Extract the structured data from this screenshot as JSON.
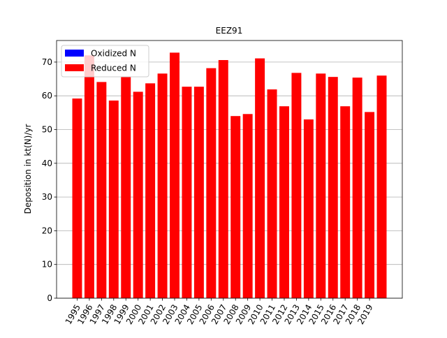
{
  "chart_data": {
    "type": "bar",
    "title": "EEZ91",
    "ylabel": "Deposition in kt(N)/yr",
    "categories": [
      "1995",
      "1996",
      "1997",
      "1998",
      "1999",
      "2000",
      "2001",
      "2002",
      "2003",
      "2004",
      "2005",
      "2006",
      "2007",
      "2008",
      "2009",
      "2010",
      "2011",
      "2012",
      "2013",
      "2014",
      "2015",
      "2016",
      "2017",
      "2018",
      "2019",
      null
    ],
    "series": [
      {
        "name": "Oxidized N",
        "color": "#0000ff",
        "values": [
          null,
          null,
          null,
          null,
          null,
          null,
          null,
          null,
          null,
          null,
          null,
          null,
          null,
          null,
          null,
          null,
          null,
          null,
          null,
          null,
          null,
          null,
          null,
          null,
          null,
          null
        ]
      },
      {
        "name": "Reduced N",
        "color": "#ff0000",
        "values": [
          59.2,
          72,
          64.1,
          58.6,
          65.7,
          61.2,
          63.7,
          66.6,
          72.8,
          62.7,
          62.7,
          68.2,
          70.6,
          54,
          54.6,
          71.1,
          61.9,
          56.9,
          66.8,
          53,
          66.6,
          65.6,
          56.9,
          65.4,
          55.2,
          66
        ]
      }
    ],
    "ylim": [
      0,
      76.4
    ],
    "yticks": [
      0,
      10,
      20,
      30,
      40,
      50,
      60,
      70
    ],
    "grid": true,
    "legend": "upper left"
  }
}
